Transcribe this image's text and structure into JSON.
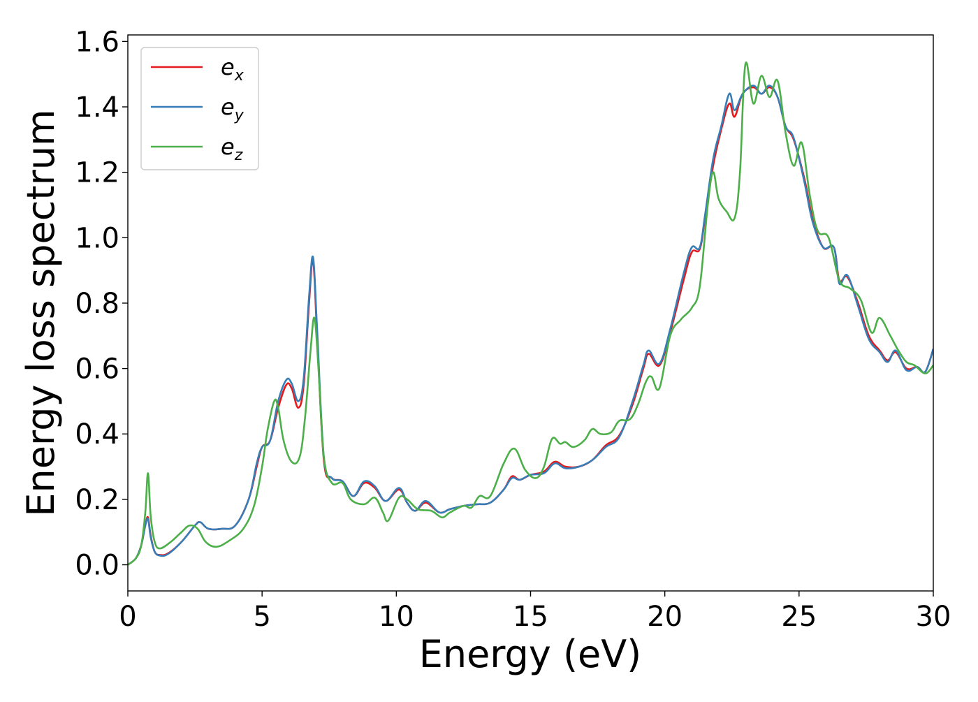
{
  "chart_data": {
    "type": "line",
    "title": "",
    "xlabel": "Energy (eV)",
    "ylabel": "Energy loss spectrum",
    "xlim": [
      0,
      30
    ],
    "ylim": [
      -0.08,
      1.62
    ],
    "xticks": [
      0,
      5,
      10,
      15,
      20,
      25,
      30
    ],
    "xtick_labels": [
      "0",
      "5",
      "10",
      "15",
      "20",
      "25",
      "30"
    ],
    "yticks": [
      0.0,
      0.2,
      0.4,
      0.6,
      0.8,
      1.0,
      1.2,
      1.4,
      1.6
    ],
    "ytick_labels": [
      "0.0",
      "0.2",
      "0.4",
      "0.6",
      "0.8",
      "1.0",
      "1.2",
      "1.4",
      "1.6"
    ],
    "grid": false,
    "legend_position": "top-left",
    "series": [
      {
        "name": "ex",
        "name_base": "e",
        "name_sub": "x",
        "color": "#e41a1c",
        "points": [
          [
            0,
            0
          ],
          [
            0.3,
            0.02
          ],
          [
            0.5,
            0.06
          ],
          [
            0.65,
            0.12
          ],
          [
            0.75,
            0.145
          ],
          [
            0.85,
            0.09
          ],
          [
            1.0,
            0.04
          ],
          [
            1.2,
            0.03
          ],
          [
            1.5,
            0.035
          ],
          [
            2.0,
            0.07
          ],
          [
            2.5,
            0.12
          ],
          [
            2.7,
            0.13
          ],
          [
            3.0,
            0.11
          ],
          [
            3.5,
            0.11
          ],
          [
            4.0,
            0.12
          ],
          [
            4.5,
            0.2
          ],
          [
            4.8,
            0.3
          ],
          [
            5.0,
            0.36
          ],
          [
            5.3,
            0.38
          ],
          [
            5.6,
            0.48
          ],
          [
            5.9,
            0.55
          ],
          [
            6.1,
            0.54
          ],
          [
            6.35,
            0.48
          ],
          [
            6.55,
            0.55
          ],
          [
            6.75,
            0.8
          ],
          [
            6.9,
            0.93
          ],
          [
            7.05,
            0.7
          ],
          [
            7.3,
            0.32
          ],
          [
            7.6,
            0.265
          ],
          [
            8.0,
            0.255
          ],
          [
            8.4,
            0.21
          ],
          [
            8.8,
            0.25
          ],
          [
            9.2,
            0.235
          ],
          [
            9.6,
            0.195
          ],
          [
            10.1,
            0.23
          ],
          [
            10.4,
            0.19
          ],
          [
            10.7,
            0.165
          ],
          [
            11.1,
            0.19
          ],
          [
            11.6,
            0.16
          ],
          [
            12.0,
            0.17
          ],
          [
            12.5,
            0.18
          ],
          [
            13.0,
            0.185
          ],
          [
            13.5,
            0.19
          ],
          [
            14.0,
            0.23
          ],
          [
            14.3,
            0.27
          ],
          [
            14.6,
            0.26
          ],
          [
            15.0,
            0.275
          ],
          [
            15.5,
            0.285
          ],
          [
            15.9,
            0.315
          ],
          [
            16.3,
            0.3
          ],
          [
            16.8,
            0.3
          ],
          [
            17.3,
            0.32
          ],
          [
            17.8,
            0.365
          ],
          [
            18.3,
            0.395
          ],
          [
            18.8,
            0.49
          ],
          [
            19.2,
            0.6
          ],
          [
            19.4,
            0.645
          ],
          [
            19.8,
            0.61
          ],
          [
            20.2,
            0.71
          ],
          [
            20.7,
            0.87
          ],
          [
            21.0,
            0.955
          ],
          [
            21.3,
            0.965
          ],
          [
            21.5,
            1.06
          ],
          [
            21.8,
            1.22
          ],
          [
            22.1,
            1.33
          ],
          [
            22.4,
            1.41
          ],
          [
            22.6,
            1.37
          ],
          [
            22.9,
            1.44
          ],
          [
            23.3,
            1.46
          ],
          [
            23.6,
            1.44
          ],
          [
            23.9,
            1.46
          ],
          [
            24.2,
            1.43
          ],
          [
            24.5,
            1.34
          ],
          [
            24.8,
            1.3
          ],
          [
            25.2,
            1.18
          ],
          [
            25.5,
            1.06
          ],
          [
            25.9,
            0.97
          ],
          [
            26.3,
            0.97
          ],
          [
            26.5,
            0.87
          ],
          [
            26.8,
            0.88
          ],
          [
            27.2,
            0.8
          ],
          [
            27.6,
            0.7
          ],
          [
            28.0,
            0.655
          ],
          [
            28.3,
            0.625
          ],
          [
            28.6,
            0.65
          ],
          [
            29.0,
            0.6
          ],
          [
            29.4,
            0.605
          ],
          [
            29.7,
            0.59
          ],
          [
            30.0,
            0.66
          ]
        ]
      },
      {
        "name": "ey",
        "name_base": "e",
        "name_sub": "y",
        "color": "#377eb8",
        "points": [
          [
            0,
            0
          ],
          [
            0.3,
            0.02
          ],
          [
            0.5,
            0.06
          ],
          [
            0.65,
            0.12
          ],
          [
            0.75,
            0.14
          ],
          [
            0.85,
            0.085
          ],
          [
            1.0,
            0.04
          ],
          [
            1.2,
            0.028
          ],
          [
            1.5,
            0.033
          ],
          [
            2.0,
            0.07
          ],
          [
            2.5,
            0.12
          ],
          [
            2.7,
            0.13
          ],
          [
            3.0,
            0.11
          ],
          [
            3.5,
            0.11
          ],
          [
            4.0,
            0.12
          ],
          [
            4.5,
            0.2
          ],
          [
            4.8,
            0.31
          ],
          [
            5.0,
            0.36
          ],
          [
            5.3,
            0.38
          ],
          [
            5.6,
            0.5
          ],
          [
            5.9,
            0.565
          ],
          [
            6.1,
            0.555
          ],
          [
            6.35,
            0.5
          ],
          [
            6.55,
            0.57
          ],
          [
            6.75,
            0.82
          ],
          [
            6.9,
            0.94
          ],
          [
            7.05,
            0.72
          ],
          [
            7.3,
            0.33
          ],
          [
            7.6,
            0.265
          ],
          [
            8.0,
            0.255
          ],
          [
            8.4,
            0.21
          ],
          [
            8.8,
            0.255
          ],
          [
            9.2,
            0.24
          ],
          [
            9.6,
            0.195
          ],
          [
            10.1,
            0.235
          ],
          [
            10.4,
            0.19
          ],
          [
            10.7,
            0.165
          ],
          [
            11.1,
            0.195
          ],
          [
            11.6,
            0.16
          ],
          [
            12.0,
            0.17
          ],
          [
            12.5,
            0.18
          ],
          [
            13.0,
            0.185
          ],
          [
            13.5,
            0.19
          ],
          [
            14.0,
            0.23
          ],
          [
            14.3,
            0.265
          ],
          [
            14.6,
            0.26
          ],
          [
            15.0,
            0.275
          ],
          [
            15.5,
            0.28
          ],
          [
            15.9,
            0.31
          ],
          [
            16.3,
            0.295
          ],
          [
            16.8,
            0.3
          ],
          [
            17.3,
            0.32
          ],
          [
            17.8,
            0.36
          ],
          [
            18.3,
            0.39
          ],
          [
            18.8,
            0.5
          ],
          [
            19.2,
            0.61
          ],
          [
            19.4,
            0.655
          ],
          [
            19.8,
            0.615
          ],
          [
            20.2,
            0.72
          ],
          [
            20.7,
            0.89
          ],
          [
            21.0,
            0.97
          ],
          [
            21.3,
            0.97
          ],
          [
            21.5,
            1.07
          ],
          [
            21.8,
            1.24
          ],
          [
            22.1,
            1.34
          ],
          [
            22.4,
            1.44
          ],
          [
            22.6,
            1.39
          ],
          [
            22.9,
            1.44
          ],
          [
            23.3,
            1.465
          ],
          [
            23.6,
            1.44
          ],
          [
            23.9,
            1.465
          ],
          [
            24.2,
            1.43
          ],
          [
            24.5,
            1.34
          ],
          [
            24.8,
            1.305
          ],
          [
            25.2,
            1.17
          ],
          [
            25.5,
            1.05
          ],
          [
            25.9,
            0.97
          ],
          [
            26.3,
            0.97
          ],
          [
            26.5,
            0.86
          ],
          [
            26.8,
            0.885
          ],
          [
            27.2,
            0.79
          ],
          [
            27.6,
            0.69
          ],
          [
            28.0,
            0.65
          ],
          [
            28.3,
            0.62
          ],
          [
            28.6,
            0.655
          ],
          [
            29.0,
            0.595
          ],
          [
            29.4,
            0.605
          ],
          [
            29.7,
            0.59
          ],
          [
            30.0,
            0.66
          ]
        ]
      },
      {
        "name": "ez",
        "name_base": "e",
        "name_sub": "z",
        "color": "#4daf4a",
        "points": [
          [
            0,
            0
          ],
          [
            0.3,
            0.02
          ],
          [
            0.5,
            0.06
          ],
          [
            0.65,
            0.16
          ],
          [
            0.75,
            0.28
          ],
          [
            0.85,
            0.15
          ],
          [
            1.0,
            0.07
          ],
          [
            1.2,
            0.05
          ],
          [
            1.6,
            0.07
          ],
          [
            2.0,
            0.1
          ],
          [
            2.3,
            0.12
          ],
          [
            2.6,
            0.11
          ],
          [
            2.9,
            0.07
          ],
          [
            3.3,
            0.055
          ],
          [
            3.8,
            0.075
          ],
          [
            4.3,
            0.11
          ],
          [
            4.7,
            0.18
          ],
          [
            5.0,
            0.3
          ],
          [
            5.2,
            0.41
          ],
          [
            5.45,
            0.5
          ],
          [
            5.6,
            0.48
          ],
          [
            5.8,
            0.38
          ],
          [
            6.1,
            0.315
          ],
          [
            6.4,
            0.33
          ],
          [
            6.6,
            0.45
          ],
          [
            6.8,
            0.65
          ],
          [
            6.95,
            0.755
          ],
          [
            7.1,
            0.6
          ],
          [
            7.3,
            0.33
          ],
          [
            7.6,
            0.25
          ],
          [
            8.0,
            0.25
          ],
          [
            8.3,
            0.2
          ],
          [
            8.8,
            0.185
          ],
          [
            9.2,
            0.205
          ],
          [
            9.5,
            0.16
          ],
          [
            9.7,
            0.135
          ],
          [
            10.1,
            0.205
          ],
          [
            10.4,
            0.2
          ],
          [
            10.8,
            0.17
          ],
          [
            11.3,
            0.165
          ],
          [
            11.7,
            0.145
          ],
          [
            12.0,
            0.16
          ],
          [
            12.5,
            0.18
          ],
          [
            12.8,
            0.175
          ],
          [
            13.1,
            0.21
          ],
          [
            13.5,
            0.21
          ],
          [
            14.0,
            0.31
          ],
          [
            14.4,
            0.355
          ],
          [
            14.8,
            0.29
          ],
          [
            15.2,
            0.265
          ],
          [
            15.5,
            0.3
          ],
          [
            15.8,
            0.385
          ],
          [
            16.1,
            0.37
          ],
          [
            16.3,
            0.375
          ],
          [
            16.6,
            0.36
          ],
          [
            17.0,
            0.38
          ],
          [
            17.3,
            0.415
          ],
          [
            17.6,
            0.4
          ],
          [
            18.0,
            0.405
          ],
          [
            18.3,
            0.44
          ],
          [
            18.7,
            0.445
          ],
          [
            19.0,
            0.49
          ],
          [
            19.3,
            0.56
          ],
          [
            19.5,
            0.575
          ],
          [
            19.8,
            0.54
          ],
          [
            20.2,
            0.7
          ],
          [
            20.6,
            0.75
          ],
          [
            21.0,
            0.785
          ],
          [
            21.3,
            0.85
          ],
          [
            21.6,
            1.1
          ],
          [
            21.8,
            1.2
          ],
          [
            22.0,
            1.12
          ],
          [
            22.3,
            1.08
          ],
          [
            22.6,
            1.06
          ],
          [
            22.8,
            1.2
          ],
          [
            23.0,
            1.53
          ],
          [
            23.3,
            1.41
          ],
          [
            23.6,
            1.495
          ],
          [
            23.9,
            1.43
          ],
          [
            24.2,
            1.48
          ],
          [
            24.5,
            1.32
          ],
          [
            24.8,
            1.22
          ],
          [
            25.1,
            1.29
          ],
          [
            25.4,
            1.13
          ],
          [
            25.7,
            1.02
          ],
          [
            26.1,
            1.0
          ],
          [
            26.5,
            0.87
          ],
          [
            26.9,
            0.845
          ],
          [
            27.3,
            0.81
          ],
          [
            27.7,
            0.71
          ],
          [
            28.0,
            0.755
          ],
          [
            28.4,
            0.7
          ],
          [
            28.7,
            0.655
          ],
          [
            29.0,
            0.62
          ],
          [
            29.3,
            0.61
          ],
          [
            29.7,
            0.585
          ],
          [
            30.0,
            0.61
          ]
        ]
      }
    ]
  }
}
